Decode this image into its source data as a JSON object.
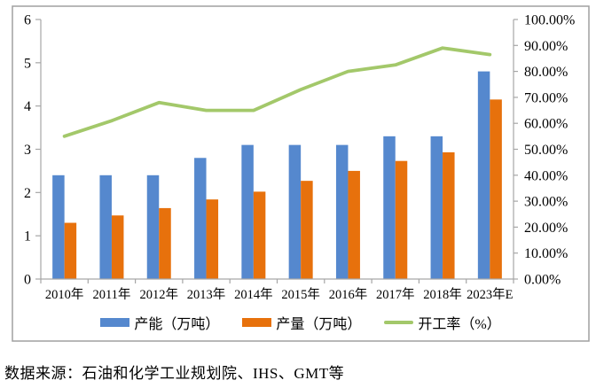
{
  "chart_data": {
    "type": "bar",
    "subtype": "bar-line-combo",
    "title": "",
    "categories": [
      "2010年",
      "2011年",
      "2012年",
      "2013年",
      "2014年",
      "2015年",
      "2016年",
      "2017年",
      "2018年",
      "2023年E"
    ],
    "series": [
      {
        "name": "产能（万吨）",
        "kind": "bar",
        "axis": "left",
        "color": "#5588CE",
        "values": [
          2.4,
          2.4,
          2.4,
          2.8,
          3.1,
          3.1,
          3.1,
          3.3,
          3.3,
          4.8
        ]
      },
      {
        "name": "产量（万吨）",
        "kind": "bar",
        "axis": "left",
        "color": "#E7710C",
        "values": [
          1.3,
          1.47,
          1.64,
          1.84,
          2.02,
          2.27,
          2.5,
          2.73,
          2.93,
          4.15
        ]
      },
      {
        "name": "开工率（%）",
        "kind": "line",
        "axis": "right",
        "color": "#A3C86A",
        "values": [
          55,
          61,
          68,
          65,
          65,
          73,
          80,
          82.5,
          89,
          86.5
        ]
      }
    ],
    "left_axis": {
      "min": 0,
      "max": 6,
      "step": 1,
      "tick_labels": [
        "0",
        "1",
        "2",
        "3",
        "4",
        "5",
        "6"
      ]
    },
    "right_axis": {
      "min": 0,
      "max": 100,
      "step": 10,
      "tick_labels": [
        "0.00%",
        "10.00%",
        "20.00%",
        "30.00%",
        "40.00%",
        "50.00%",
        "60.00%",
        "70.00%",
        "80.00%",
        "90.00%",
        "100.00%"
      ]
    },
    "grid": false,
    "legend_position": "bottom"
  },
  "source_note": "数据来源：石油和化学工业规划院、IHS、GMT等",
  "style": {
    "axis_color": "#A6A6A6",
    "border_color": "#A0A0A0",
    "text_color": "#000000",
    "background": "#FFFFFF"
  }
}
